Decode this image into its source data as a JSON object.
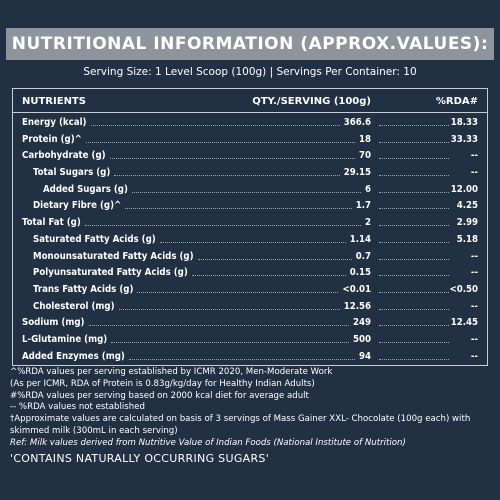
{
  "title": "NUTRITIONAL INFORMATION (APPROX.VALUES):",
  "serving_line": "Serving Size: 1 Level Scoop (100g)  |  Servings Per Container: 10",
  "table": {
    "headers": {
      "nutrients": "NUTRIENTS",
      "qty": "QTY./SERVING (100g)",
      "rda": "%RDA#"
    },
    "rows": [
      {
        "name": "Energy (kcal)",
        "qty": "366.6",
        "rda": "18.33",
        "indent": 0
      },
      {
        "name": "Protein (g)^",
        "qty": "18",
        "rda": "33.33",
        "indent": 0
      },
      {
        "name": "Carbohydrate (g)",
        "qty": "70",
        "rda": "--",
        "indent": 0
      },
      {
        "name": "Total Sugars (g)",
        "qty": "29.15",
        "rda": "--",
        "indent": 1
      },
      {
        "name": "Added Sugars (g)",
        "qty": "6",
        "rda": "12.00",
        "indent": 2
      },
      {
        "name": "Dietary Fibre (g)^",
        "qty": "1.7",
        "rda": "4.25",
        "indent": 1
      },
      {
        "name": "Total Fat (g)",
        "qty": "2",
        "rda": "2.99",
        "indent": 0
      },
      {
        "name": "Saturated Fatty Acids (g)",
        "qty": "1.14",
        "rda": "5.18",
        "indent": 1
      },
      {
        "name": "Monounsaturated Fatty Acids (g)",
        "qty": "0.7",
        "rda": "--",
        "indent": 1
      },
      {
        "name": "Polyunsaturated Fatty Acids (g)",
        "qty": "0.15",
        "rda": "--",
        "indent": 1
      },
      {
        "name": "Trans Fatty Acids (g)",
        "qty": "<0.01",
        "rda": "<0.50",
        "indent": 1
      },
      {
        "name": "Cholesterol (mg)",
        "qty": "12.56",
        "rda": "--",
        "indent": 1
      },
      {
        "name": "Sodium (mg)",
        "qty": "249",
        "rda": "12.45",
        "indent": 0
      },
      {
        "name": "L-Glutamine (mg)",
        "qty": "500",
        "rda": "--",
        "indent": 0
      },
      {
        "name": "Added Enzymes (mg)",
        "qty": "94",
        "rda": "--",
        "indent": 0
      }
    ]
  },
  "notes": {
    "n1": "^%RDA values per serving established by ICMR 2020, Men-Moderate Work",
    "n2": "(As per ICMR, RDA of Protein is 0.83g/kg/day for Healthy Indian Adults)",
    "n3": "#%RDA values per serving based on 2000 kcal diet for average adult",
    "n4": "-- %RDA values not established",
    "n5": "†Approximate values are calculated on basis of 3 servings of Mass Gainer XXL- Chocolate (100g each) with",
    "n6": "skimmed milk (300mL in each serving)",
    "ref": "Ref: Milk values derived from Nutritive Value of Indian Foods (National Institute of Nutrition)",
    "claim": "'CONTAINS NATURALLY OCCURRING SUGARS'"
  }
}
